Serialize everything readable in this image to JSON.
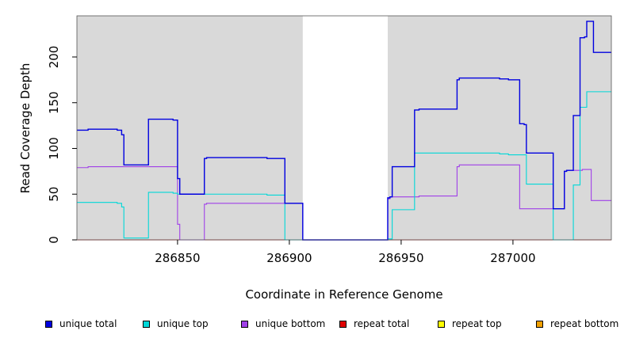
{
  "chart_data": {
    "type": "line",
    "title": "",
    "xlabel": "Coordinate in Reference Genome",
    "ylabel": "Read Coverage Depth",
    "xlim": [
      286805,
      287044
    ],
    "ylim": [
      0,
      245
    ],
    "x_ticks": [
      286850,
      286900,
      286950,
      287000
    ],
    "y_ticks": [
      0,
      50,
      100,
      150,
      200
    ],
    "background_color": "#d9d9d9",
    "gap_regions": [
      {
        "start": 286906,
        "end": 286944
      }
    ],
    "legend_position": "bottom",
    "series": [
      {
        "name": "unique total",
        "color": "#0000e0",
        "points": [
          [
            286805,
            120
          ],
          [
            286810,
            120
          ],
          [
            286810,
            121
          ],
          [
            286823,
            121
          ],
          [
            286823,
            120
          ],
          [
            286825,
            120
          ],
          [
            286825,
            115
          ],
          [
            286826,
            115
          ],
          [
            286826,
            82
          ],
          [
            286837,
            82
          ],
          [
            286837,
            132
          ],
          [
            286848,
            132
          ],
          [
            286848,
            131
          ],
          [
            286850,
            131
          ],
          [
            286850,
            67
          ],
          [
            286851,
            67
          ],
          [
            286851,
            50
          ],
          [
            286862,
            50
          ],
          [
            286862,
            89
          ],
          [
            286863,
            89
          ],
          [
            286863,
            90
          ],
          [
            286890,
            90
          ],
          [
            286890,
            89
          ],
          [
            286898,
            89
          ],
          [
            286898,
            40
          ],
          [
            286906,
            40
          ],
          [
            286906,
            0
          ],
          [
            286944,
            0
          ],
          [
            286944,
            46
          ],
          [
            286945,
            46
          ],
          [
            286945,
            47
          ],
          [
            286946,
            47
          ],
          [
            286946,
            80
          ],
          [
            286956,
            80
          ],
          [
            286956,
            142
          ],
          [
            286958,
            142
          ],
          [
            286958,
            143
          ],
          [
            286975,
            143
          ],
          [
            286975,
            175
          ],
          [
            286976,
            175
          ],
          [
            286976,
            177
          ],
          [
            286994,
            177
          ],
          [
            286994,
            176
          ],
          [
            286998,
            176
          ],
          [
            286998,
            175
          ],
          [
            287003,
            175
          ],
          [
            287003,
            127
          ],
          [
            287005,
            127
          ],
          [
            287005,
            126
          ],
          [
            287006,
            126
          ],
          [
            287006,
            95
          ],
          [
            287018,
            95
          ],
          [
            287018,
            34
          ],
          [
            287023,
            34
          ],
          [
            287023,
            75
          ],
          [
            287024,
            75
          ],
          [
            287024,
            76
          ],
          [
            287027,
            76
          ],
          [
            287027,
            136
          ],
          [
            287030,
            136
          ],
          [
            287030,
            221
          ],
          [
            287032,
            221
          ],
          [
            287032,
            222
          ],
          [
            287033,
            222
          ],
          [
            287033,
            239
          ],
          [
            287036,
            239
          ],
          [
            287036,
            205
          ],
          [
            287044,
            205
          ]
        ]
      },
      {
        "name": "unique top",
        "color": "#00d8d8",
        "points": [
          [
            286805,
            41
          ],
          [
            286823,
            41
          ],
          [
            286823,
            40
          ],
          [
            286825,
            40
          ],
          [
            286825,
            36
          ],
          [
            286826,
            36
          ],
          [
            286826,
            2
          ],
          [
            286837,
            2
          ],
          [
            286837,
            52
          ],
          [
            286848,
            52
          ],
          [
            286848,
            51
          ],
          [
            286850,
            51
          ],
          [
            286850,
            50
          ],
          [
            286890,
            50
          ],
          [
            286890,
            49
          ],
          [
            286898,
            49
          ],
          [
            286898,
            0
          ],
          [
            286944,
            0
          ],
          [
            286944,
            1
          ],
          [
            286946,
            1
          ],
          [
            286946,
            33
          ],
          [
            286956,
            33
          ],
          [
            286956,
            95
          ],
          [
            286994,
            95
          ],
          [
            286994,
            94
          ],
          [
            286998,
            94
          ],
          [
            286998,
            93
          ],
          [
            287003,
            93
          ],
          [
            287003,
            93
          ],
          [
            287006,
            93
          ],
          [
            287006,
            61
          ],
          [
            287018,
            61
          ],
          [
            287018,
            0
          ],
          [
            287027,
            0
          ],
          [
            287027,
            60
          ],
          [
            287030,
            60
          ],
          [
            287030,
            145
          ],
          [
            287033,
            145
          ],
          [
            287033,
            162
          ],
          [
            287044,
            162
          ]
        ]
      },
      {
        "name": "unique bottom",
        "color": "#a040e8",
        "points": [
          [
            286805,
            79
          ],
          [
            286810,
            79
          ],
          [
            286810,
            80
          ],
          [
            286850,
            80
          ],
          [
            286850,
            17
          ],
          [
            286851,
            17
          ],
          [
            286851,
            0
          ],
          [
            286862,
            0
          ],
          [
            286862,
            39
          ],
          [
            286863,
            39
          ],
          [
            286863,
            40
          ],
          [
            286906,
            40
          ],
          [
            286906,
            0
          ],
          [
            286944,
            0
          ],
          [
            286944,
            45
          ],
          [
            286945,
            45
          ],
          [
            286945,
            47
          ],
          [
            286958,
            47
          ],
          [
            286958,
            48
          ],
          [
            286975,
            48
          ],
          [
            286975,
            80
          ],
          [
            286976,
            80
          ],
          [
            286976,
            82
          ],
          [
            287003,
            82
          ],
          [
            287003,
            34
          ],
          [
            287018,
            34
          ],
          [
            287018,
            34
          ],
          [
            287023,
            34
          ],
          [
            287023,
            75
          ],
          [
            287024,
            75
          ],
          [
            287024,
            76
          ],
          [
            287031,
            76
          ],
          [
            287031,
            77
          ],
          [
            287035,
            77
          ],
          [
            287035,
            43
          ],
          [
            287044,
            43
          ]
        ]
      },
      {
        "name": "repeat total",
        "color": "#e00000",
        "points": [
          [
            286805,
            0
          ],
          [
            287044,
            0
          ]
        ]
      },
      {
        "name": "repeat top",
        "color": "#ffff00",
        "points": [
          [
            286805,
            0
          ],
          [
            287044,
            0
          ]
        ]
      },
      {
        "name": "repeat bottom",
        "color": "#f0a000",
        "points": [
          [
            286805,
            0
          ],
          [
            287044,
            0
          ]
        ]
      }
    ]
  }
}
